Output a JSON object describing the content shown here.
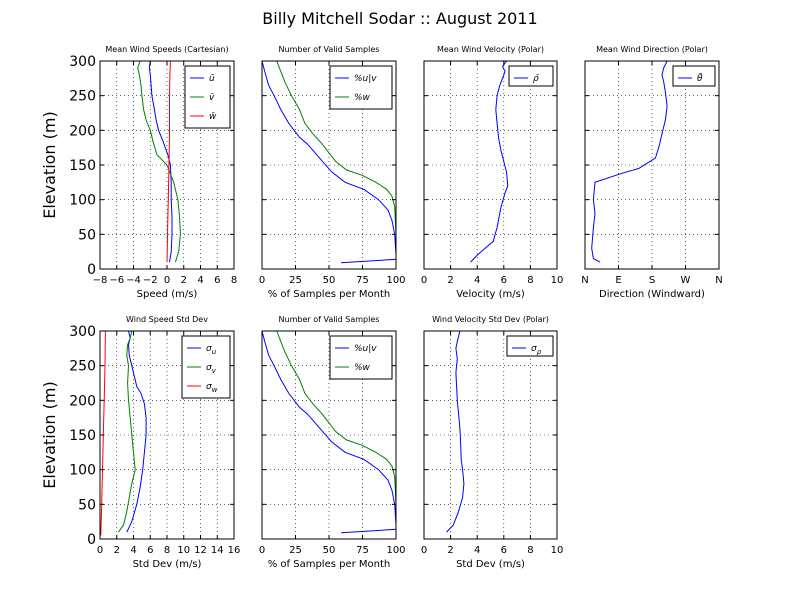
{
  "figure_title": "Billy Mitchell Sodar :: August 2011",
  "chart_data": [
    {
      "id": "p1",
      "type": "line",
      "title": "Mean Wind Speeds (Cartesian)",
      "xlabel": "Speed (m/s)",
      "ylabel": "Elevation (m)",
      "xlim": [
        -8,
        8
      ],
      "ylim": [
        0,
        300
      ],
      "xticks": [
        -8,
        -6,
        -4,
        -2,
        0,
        2,
        4,
        6,
        8
      ],
      "xticklabels": [
        "−8",
        "−6",
        "−4",
        "−2",
        "0",
        "2",
        "4",
        "6",
        "8"
      ],
      "yticks": [
        0,
        50,
        100,
        150,
        200,
        250,
        300
      ],
      "yticklabels": [
        "0",
        "50",
        "100",
        "150",
        "200",
        "250",
        "300"
      ],
      "grid": true,
      "legend_position": "top-right",
      "series": [
        {
          "name": "ū",
          "color": "#0000ff",
          "x": [
            0.3,
            0.5,
            0.6,
            0.6,
            0.5,
            0.5,
            0.4,
            0.1,
            -0.5,
            -1.0,
            -1.3,
            -1.5,
            -1.8,
            -1.9,
            -2.0,
            -2.1,
            -2.0
          ],
          "y": [
            10,
            25,
            50,
            75,
            100,
            125,
            150,
            165,
            185,
            200,
            215,
            230,
            250,
            265,
            280,
            290,
            300
          ]
        },
        {
          "name": "v̄",
          "color": "#008000",
          "x": [
            1.0,
            1.4,
            1.6,
            1.5,
            1.3,
            0.8,
            0.0,
            -1.2,
            -1.7,
            -2.0,
            -2.5,
            -2.8,
            -3.0,
            -3.1,
            -3.3,
            -3.5,
            -3.2
          ],
          "y": [
            10,
            25,
            50,
            75,
            100,
            125,
            150,
            165,
            185,
            200,
            215,
            230,
            250,
            265,
            280,
            290,
            300
          ]
        },
        {
          "name": "w̄",
          "color": "#ff0000",
          "x": [
            0.0,
            0.05,
            0.1,
            0.15,
            0.2,
            0.25,
            0.3,
            0.3,
            0.3,
            0.35,
            0.4
          ],
          "y": [
            10,
            40,
            70,
            100,
            130,
            160,
            190,
            220,
            250,
            280,
            300
          ]
        }
      ]
    },
    {
      "id": "p2",
      "type": "line",
      "title": "Number of Valid Samples",
      "xlabel": "% of Samples per Month",
      "ylabel": "",
      "xlim": [
        0,
        100
      ],
      "ylim": [
        0,
        300
      ],
      "xticks": [
        0,
        25,
        50,
        75,
        100
      ],
      "xticklabels": [
        "0",
        "25",
        "50",
        "75",
        "100"
      ],
      "yticks": [
        0,
        50,
        100,
        150,
        200,
        250,
        300
      ],
      "yticklabels": [],
      "grid": true,
      "legend_position": "top-right",
      "series": [
        {
          "name": "%u|v",
          "color": "#0000ff",
          "x": [
            59,
            100,
            100,
            99,
            97,
            94,
            87,
            76,
            62,
            52,
            43,
            34,
            28,
            20,
            14,
            9,
            5,
            2,
            0
          ],
          "y": [
            9,
            14,
            20,
            50,
            70,
            85,
            100,
            115,
            125,
            140,
            160,
            180,
            190,
            210,
            230,
            250,
            265,
            285,
            300
          ]
        },
        {
          "name": "%w",
          "color": "#008000",
          "x": [
            100,
            100,
            99,
            97,
            93,
            85,
            75,
            63,
            55,
            45,
            38,
            32,
            28,
            22,
            17,
            14,
            11
          ],
          "y": [
            10,
            50,
            90,
            105,
            115,
            125,
            135,
            143,
            155,
            180,
            195,
            210,
            230,
            250,
            270,
            285,
            300
          ]
        }
      ]
    },
    {
      "id": "p3",
      "type": "line",
      "title": "Mean Wind Velocity (Polar)",
      "xlabel": "Velocity (m/s)",
      "ylabel": "",
      "xlim": [
        0,
        10
      ],
      "ylim": [
        0,
        300
      ],
      "xticks": [
        0,
        2,
        4,
        6,
        8,
        10
      ],
      "xticklabels": [
        "0",
        "2",
        "4",
        "6",
        "8",
        "10"
      ],
      "yticks": [
        0,
        50,
        100,
        150,
        200,
        250,
        300
      ],
      "yticklabels": [],
      "grid": true,
      "legend_position": "top-right",
      "series": [
        {
          "name": "ρ̄",
          "color": "#0000ff",
          "x": [
            3.5,
            4.0,
            4.6,
            5.2,
            5.5,
            5.8,
            6.1,
            6.3,
            6.2,
            6.0,
            5.8,
            5.6,
            5.5,
            5.4,
            5.5,
            5.7,
            5.9,
            6.1,
            5.9,
            6.2
          ],
          "y": [
            10,
            20,
            30,
            40,
            60,
            90,
            110,
            120,
            140,
            155,
            170,
            190,
            210,
            230,
            250,
            265,
            275,
            285,
            292,
            300
          ]
        }
      ]
    },
    {
      "id": "p4",
      "type": "line",
      "title": "Mean Wind Direction (Polar)",
      "xlabel": "Direction (Windward)",
      "ylabel": "",
      "xlim": [
        0,
        4
      ],
      "ylim": [
        0,
        300
      ],
      "xticks": [
        0,
        1,
        2,
        3,
        4
      ],
      "xticklabels": [
        "N",
        "E",
        "S",
        "W",
        "N"
      ],
      "yticks": [
        0,
        50,
        100,
        150,
        200,
        250,
        300
      ],
      "yticklabels": [],
      "grid": true,
      "legend_position": "top-right",
      "series": [
        {
          "name": "θ̄",
          "color": "#0000ff",
          "x": [
            0.45,
            0.25,
            0.2,
            0.25,
            0.3,
            0.25,
            0.3,
            1.1,
            1.6,
            2.1,
            2.2,
            2.3,
            2.4,
            2.45,
            2.4,
            2.35,
            2.3,
            2.35,
            2.45
          ],
          "y": [
            10,
            15,
            30,
            60,
            80,
            100,
            125,
            138,
            145,
            160,
            175,
            195,
            215,
            235,
            255,
            270,
            280,
            290,
            300
          ]
        }
      ]
    },
    {
      "id": "p5",
      "type": "line",
      "title": "Wind Speed Std Dev",
      "xlabel": "Std Dev (m/s)",
      "ylabel": "Elevation (m)",
      "xlim": [
        0,
        16
      ],
      "ylim": [
        0,
        300
      ],
      "xticks": [
        0,
        2,
        4,
        6,
        8,
        10,
        12,
        14,
        16
      ],
      "xticklabels": [
        "0",
        "2",
        "4",
        "6",
        "8",
        "10",
        "12",
        "14",
        "16"
      ],
      "yticks": [
        0,
        50,
        100,
        150,
        200,
        250,
        300
      ],
      "yticklabels": [
        "0",
        "50",
        "100",
        "150",
        "200",
        "250",
        "300"
      ],
      "grid": true,
      "legend_position": "top-right",
      "series": [
        {
          "name": "σ_u",
          "color": "#0000ff",
          "x": [
            3.2,
            3.8,
            4.4,
            4.8,
            5.1,
            5.3,
            5.5,
            5.5,
            5.3,
            4.9,
            4.4,
            4.1,
            3.8,
            3.5,
            3.4,
            3.6,
            3.4
          ],
          "y": [
            10,
            25,
            50,
            75,
            100,
            125,
            150,
            175,
            195,
            210,
            220,
            235,
            250,
            265,
            280,
            290,
            300
          ]
        },
        {
          "name": "σ_v",
          "color": "#008000",
          "x": [
            2.2,
            2.8,
            3.2,
            3.5,
            3.8,
            4.2,
            4.0,
            3.8,
            3.6,
            3.4,
            3.3,
            3.4,
            3.2,
            3.3,
            3.6,
            3.8
          ],
          "y": [
            10,
            20,
            40,
            60,
            80,
            100,
            125,
            150,
            175,
            200,
            225,
            250,
            265,
            280,
            290,
            300
          ]
        },
        {
          "name": "σ_w",
          "color": "#ff0000",
          "x": [
            0.1,
            0.2,
            0.3,
            0.4,
            0.5,
            0.6,
            0.65
          ],
          "y": [
            5,
            50,
            100,
            150,
            200,
            250,
            300
          ]
        }
      ]
    },
    {
      "id": "p6",
      "type": "line",
      "title": "Number of Valid Samples",
      "xlabel": "% of Samples per Month",
      "ylabel": "",
      "xlim": [
        0,
        100
      ],
      "ylim": [
        0,
        300
      ],
      "xticks": [
        0,
        25,
        50,
        75,
        100
      ],
      "xticklabels": [
        "0",
        "25",
        "50",
        "75",
        "100"
      ],
      "yticks": [
        0,
        50,
        100,
        150,
        200,
        250,
        300
      ],
      "yticklabels": [],
      "grid": true,
      "legend_position": "top-right",
      "series": [
        {
          "name": "%u|v",
          "color": "#0000ff",
          "x": [
            59,
            100,
            100,
            99,
            97,
            94,
            87,
            76,
            62,
            52,
            43,
            34,
            28,
            20,
            14,
            9,
            5,
            2,
            0
          ],
          "y": [
            9,
            14,
            20,
            50,
            70,
            85,
            100,
            115,
            125,
            140,
            160,
            180,
            190,
            210,
            230,
            250,
            265,
            285,
            300
          ]
        },
        {
          "name": "%w",
          "color": "#008000",
          "x": [
            100,
            100,
            99,
            97,
            93,
            85,
            75,
            63,
            55,
            45,
            38,
            32,
            28,
            22,
            17,
            14,
            11
          ],
          "y": [
            10,
            50,
            90,
            105,
            115,
            125,
            135,
            143,
            155,
            180,
            195,
            210,
            230,
            250,
            270,
            285,
            300
          ]
        }
      ]
    },
    {
      "id": "p7",
      "type": "line",
      "title": "Wind Velocity Std Dev (Polar)",
      "xlabel": "Std Dev (m/s)",
      "ylabel": "",
      "xlim": [
        0,
        10
      ],
      "ylim": [
        0,
        300
      ],
      "xticks": [
        0,
        2,
        4,
        6,
        8,
        10
      ],
      "xticklabels": [
        "0",
        "2",
        "4",
        "6",
        "8",
        "10"
      ],
      "yticks": [
        0,
        50,
        100,
        150,
        200,
        250,
        300
      ],
      "yticklabels": [],
      "grid": true,
      "legend_position": "top-right",
      "series": [
        {
          "name": "σ_ρ",
          "color": "#0000ff",
          "x": [
            1.7,
            2.2,
            2.6,
            2.9,
            3.0,
            2.9,
            2.8,
            2.75,
            2.7,
            2.6,
            2.5,
            2.45,
            2.4,
            2.5,
            2.4,
            2.5,
            2.6,
            2.7
          ],
          "y": [
            10,
            20,
            40,
            60,
            80,
            100,
            115,
            140,
            160,
            180,
            200,
            220,
            240,
            260,
            275,
            285,
            292,
            300
          ]
        }
      ]
    }
  ]
}
